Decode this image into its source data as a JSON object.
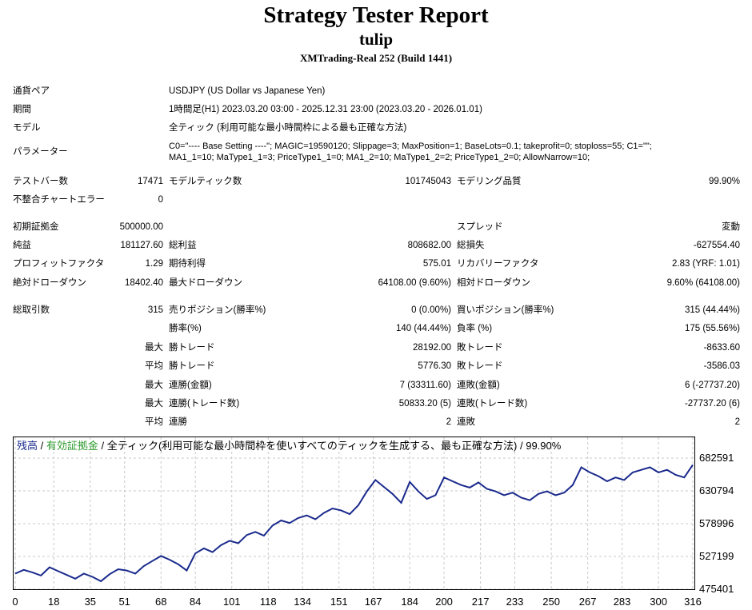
{
  "header": {
    "title": "Strategy Tester Report",
    "subtitle": "tulip",
    "build": "XMTrading-Real 252 (Build 1441)"
  },
  "info": {
    "pair_label": "通貨ペア",
    "pair_value": "USDJPY (US Dollar vs Japanese Yen)",
    "period_label": "期間",
    "period_value": "1時間足(H1) 2023.03.20 03:00 - 2025.12.31 23:00 (2023.03.20 - 2026.01.01)",
    "model_label": "モデル",
    "model_value": "全ティック (利用可能な最小時間枠による最も正確な方法)",
    "params_label": "パラメーター",
    "params_line1": "C0=\"---- Base Setting ----\"; MAGIC=19590120; Slippage=3; MaxPosition=1; BaseLots=0.1; takeprofit=0; stoploss=55; C1=\"\";",
    "params_line2": "MA1_1=10; MaType1_1=3; PriceType1_1=0; MA1_2=10; MaType1_2=2; PriceType1_2=0; AllowNarrow=10;"
  },
  "stats": {
    "bars_label": "テストバー数",
    "bars_value": "17471",
    "ticks_label": "モデルティック数",
    "ticks_value": "101745043",
    "quality_label": "モデリング品質",
    "quality_value": "99.90%",
    "mismatch_label": "不整合チャートエラー",
    "mismatch_value": "0",
    "deposit_label": "初期証拠金",
    "deposit_value": "500000.00",
    "spread_label": "スプレッド",
    "spread_value": "変動",
    "netprofit_label": "純益",
    "netprofit_value": "181127.60",
    "grossprofit_label": "総利益",
    "grossprofit_value": "808682.00",
    "grossloss_label": "総損失",
    "grossloss_value": "-627554.40",
    "pf_label": "プロフィットファクタ",
    "pf_value": "1.29",
    "expected_label": "期待利得",
    "expected_value": "575.01",
    "recovery_label": "リカバリーファクタ",
    "recovery_value": "2.83 (YRF: 1.01)",
    "absdd_label": "絶対ドローダウン",
    "absdd_value": "18402.40",
    "maxdd_label": "最大ドローダウン",
    "maxdd_value": "64108.00 (9.60%)",
    "reldd_label": "相対ドローダウン",
    "reldd_value": "9.60% (64108.00)",
    "trades_label": "総取引数",
    "trades_value": "315",
    "short_label": "売りポジション(勝率%)",
    "short_value": "0 (0.00%)",
    "long_label": "買いポジション(勝率%)",
    "long_value": "315 (44.44%)",
    "winrate_label": "勝率(%)",
    "winrate_value": "140 (44.44%)",
    "lossrate_label": "負率 (%)",
    "lossrate_value": "175 (55.56%)",
    "max_label": "最大",
    "avg_label": "平均",
    "largest_win_label": "勝トレード",
    "largest_win_value": "28192.00",
    "largest_loss_label": "敗トレード",
    "largest_loss_value": "-8633.60",
    "avg_win_label": "勝トレード",
    "avg_win_value": "5776.30",
    "avg_loss_label": "敗トレード",
    "avg_loss_value": "-3586.03",
    "max_consec_win_label": "連勝(金額)",
    "max_consec_win_value": "7 (33311.60)",
    "max_consec_loss_label": "連敗(金額)",
    "max_consec_loss_value": "6 (-27737.20)",
    "max_consec_profit_label": "連勝(トレード数)",
    "max_consec_profit_value": "50833.20 (5)",
    "max_consec_lossamt_label": "連敗(トレード数)",
    "max_consec_lossamt_value": "-27737.20 (6)",
    "avg_consec_win_label": "連勝",
    "avg_consec_win_value": "2",
    "avg_consec_loss_label": "連敗",
    "avg_consec_loss_value": "2"
  },
  "chart_legend": {
    "balance": "残高",
    "sep1": " / ",
    "equity": "有効証拠金",
    "sep2": " / ",
    "rest": "全ティック(利用可能な最小時間枠を使いすべてのティックを生成する、最も正確な方法) / 99.90%"
  },
  "colors": {
    "balance_line": "#1a2a8c",
    "equity_legend": "#2e9a2e",
    "grid": "#c8c8c8"
  },
  "chart_data": {
    "type": "line",
    "title": "",
    "x_ticks": [
      "0",
      "18",
      "35",
      "51",
      "68",
      "84",
      "101",
      "118",
      "134",
      "151",
      "167",
      "184",
      "200",
      "217",
      "233",
      "250",
      "267",
      "283",
      "300",
      "316"
    ],
    "y_ticks": [
      "682591",
      "630794",
      "578996",
      "527199",
      "475401"
    ],
    "ylim": [
      475401,
      682591
    ],
    "xlim": [
      0,
      316
    ],
    "grid": true,
    "series": [
      {
        "x": [
          0,
          4,
          8,
          12,
          16,
          20,
          24,
          28,
          32,
          36,
          40,
          44,
          48,
          52,
          56,
          60,
          64,
          68,
          72,
          76,
          80,
          84,
          88,
          92,
          96,
          100,
          104,
          108,
          112,
          116,
          120,
          124,
          128,
          132,
          136,
          140,
          144,
          148,
          152,
          156,
          160,
          164,
          168,
          172,
          176,
          180,
          184,
          188,
          192,
          196,
          200,
          204,
          208,
          212,
          216,
          220,
          224,
          228,
          232,
          236,
          240,
          244,
          248,
          252,
          256,
          260,
          264,
          268,
          272,
          276,
          280,
          284,
          288,
          292,
          296,
          300,
          304,
          308,
          312,
          316
        ],
        "values": [
          500000,
          506000,
          502000,
          497000,
          510000,
          504000,
          498000,
          492000,
          500000,
          495000,
          488000,
          499000,
          507000,
          505000,
          500000,
          512000,
          520000,
          528000,
          522000,
          515000,
          505000,
          532000,
          540000,
          534000,
          545000,
          552000,
          548000,
          561000,
          566000,
          560000,
          576000,
          584000,
          580000,
          588000,
          592000,
          586000,
          596000,
          603000,
          600000,
          594000,
          608000,
          630000,
          648000,
          637000,
          626000,
          612000,
          645000,
          630000,
          618000,
          624000,
          652000,
          646000,
          640000,
          636000,
          644000,
          634000,
          630000,
          624000,
          628000,
          620000,
          616000,
          626000,
          630000,
          624000,
          628000,
          640000,
          668000,
          660000,
          654000,
          646000,
          652000,
          648000,
          660000,
          664000,
          668000,
          660000,
          664000,
          656000,
          652000,
          672000
        ]
      }
    ]
  }
}
